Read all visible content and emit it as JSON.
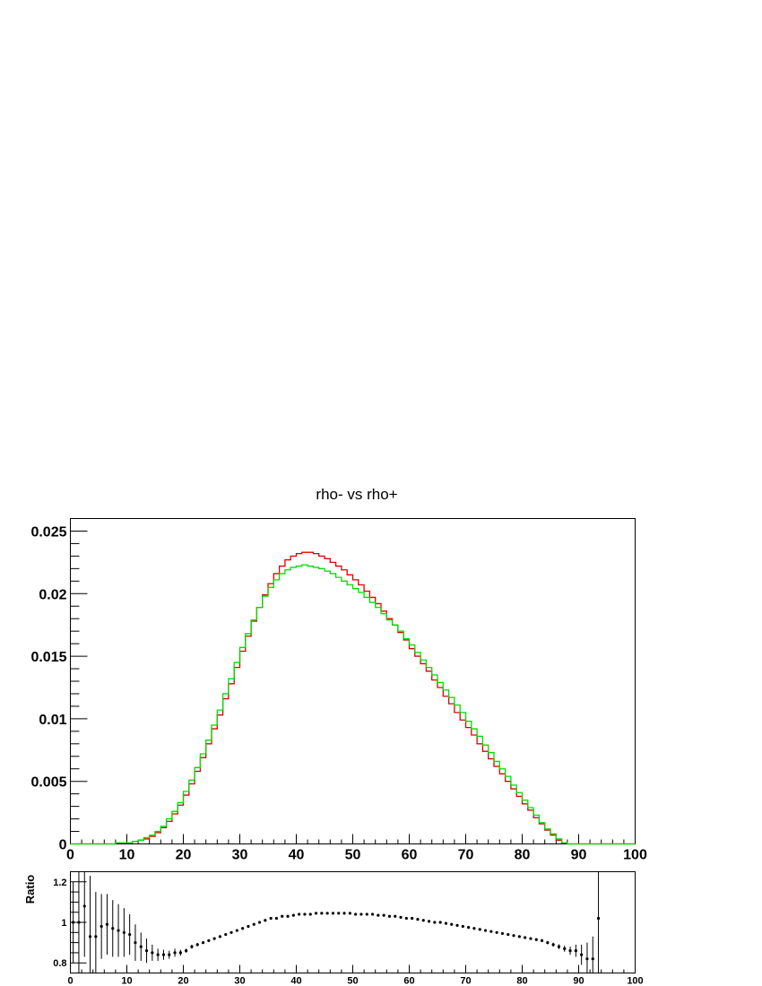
{
  "chart_data": [
    {
      "type": "line",
      "title": "rho- vs rho+",
      "xlim": [
        0,
        100
      ],
      "ylim": [
        0,
        0.026
      ],
      "x_ticks": [
        0,
        10,
        20,
        30,
        40,
        50,
        60,
        70,
        80,
        90,
        100
      ],
      "x_tick_labels": [
        "0",
        "10",
        "20",
        "30",
        "40",
        "50",
        "60",
        "70",
        "80",
        "90",
        "100"
      ],
      "y_ticks": [
        0,
        0.005,
        0.01,
        0.015,
        0.02,
        0.025
      ],
      "y_tick_labels": [
        "0",
        "0.005",
        "0.01",
        "0.015",
        "0.02",
        "0.025"
      ],
      "grid": false,
      "series": [
        {
          "color": "#e00000",
          "values": [
            0,
            0,
            0,
            0,
            0,
            0,
            0,
            0,
            0.0001,
            0.0001,
            0.0001,
            0.0002,
            0.0003,
            0.0004,
            0.0006,
            0.0009,
            0.0013,
            0.0018,
            0.0024,
            0.0031,
            0.0039,
            0.0048,
            0.0058,
            0.0069,
            0.008,
            0.0092,
            0.0103,
            0.0116,
            0.0128,
            0.0141,
            0.0154,
            0.0166,
            0.0178,
            0.0189,
            0.0199,
            0.0208,
            0.0216,
            0.0222,
            0.0227,
            0.023,
            0.0232,
            0.0233,
            0.0233,
            0.0232,
            0.023,
            0.0228,
            0.0225,
            0.0222,
            0.0219,
            0.0215,
            0.0211,
            0.0207,
            0.0202,
            0.0197,
            0.0192,
            0.0186,
            0.018,
            0.0175,
            0.0169,
            0.0163,
            0.0156,
            0.015,
            0.0144,
            0.0138,
            0.0131,
            0.0125,
            0.0118,
            0.0112,
            0.0105,
            0.0099,
            0.0093,
            0.0087,
            0.008,
            0.0074,
            0.0068,
            0.0062,
            0.0056,
            0.005,
            0.0044,
            0.0038,
            0.0032,
            0.0027,
            0.0021,
            0.0016,
            0.0011,
            0.0007,
            0.0003,
            0.0001,
            0,
            0,
            0,
            0,
            0,
            0,
            0,
            0,
            0,
            0,
            0,
            0
          ]
        },
        {
          "color": "#00dd00",
          "values": [
            0,
            0,
            0,
            0,
            0,
            0,
            0,
            0,
            0.0001,
            0.0001,
            0.0001,
            0.0002,
            0.0003,
            0.0005,
            0.0007,
            0.001,
            0.0014,
            0.002,
            0.0026,
            0.0033,
            0.0042,
            0.0051,
            0.0061,
            0.0072,
            0.0083,
            0.0095,
            0.0107,
            0.012,
            0.0132,
            0.0145,
            0.0157,
            0.0168,
            0.0179,
            0.0189,
            0.0198,
            0.0205,
            0.0211,
            0.0216,
            0.0219,
            0.0221,
            0.0222,
            0.0223,
            0.0222,
            0.0221,
            0.022,
            0.0218,
            0.0216,
            0.0213,
            0.021,
            0.0207,
            0.0204,
            0.0201,
            0.0197,
            0.0193,
            0.0189,
            0.0184,
            0.0179,
            0.0175,
            0.017,
            0.0164,
            0.0159,
            0.0153,
            0.0147,
            0.0141,
            0.0135,
            0.0129,
            0.0123,
            0.0117,
            0.0111,
            0.0105,
            0.0098,
            0.0092,
            0.0086,
            0.0079,
            0.0073,
            0.0066,
            0.006,
            0.0054,
            0.0047,
            0.0041,
            0.0035,
            0.0029,
            0.0023,
            0.0017,
            0.0012,
            0.0008,
            0.0004,
            0.0001,
            0,
            0,
            0,
            0,
            0,
            0,
            0,
            0,
            0,
            0,
            0,
            0
          ]
        }
      ]
    },
    {
      "type": "scatter",
      "ylabel": "Ratio",
      "xlim": [
        0,
        100
      ],
      "ylim": [
        0.75,
        1.25
      ],
      "x_ticks": [
        0,
        10,
        20,
        30,
        40,
        50,
        60,
        70,
        80,
        90,
        100
      ],
      "x_tick_labels": [
        "0",
        "10",
        "20",
        "30",
        "40",
        "50",
        "60",
        "70",
        "80",
        "90",
        "100"
      ],
      "y_ticks": [
        0.8,
        1,
        1.2
      ],
      "y_tick_labels": [
        "0.8",
        "1",
        "1.2"
      ],
      "grid": false,
      "series": [
        {
          "color": "#000000",
          "x": [
            0.5,
            1.5,
            2.5,
            3.5,
            4.5,
            5.5,
            6.5,
            7.5,
            8.5,
            9.5,
            10.5,
            11.5,
            12.5,
            13.5,
            14.5,
            15.5,
            16.5,
            17.5,
            18.5,
            19.5,
            20.5,
            21.5,
            22.5,
            23.5,
            24.5,
            25.5,
            26.5,
            27.5,
            28.5,
            29.5,
            30.5,
            31.5,
            32.5,
            33.5,
            34.5,
            35.5,
            36.5,
            37.5,
            38.5,
            39.5,
            40.5,
            41.5,
            42.5,
            43.5,
            44.5,
            45.5,
            46.5,
            47.5,
            48.5,
            49.5,
            50.5,
            51.5,
            52.5,
            53.5,
            54.5,
            55.5,
            56.5,
            57.5,
            58.5,
            59.5,
            60.5,
            61.5,
            62.5,
            63.5,
            64.5,
            65.5,
            66.5,
            67.5,
            68.5,
            69.5,
            70.5,
            71.5,
            72.5,
            73.5,
            74.5,
            75.5,
            76.5,
            77.5,
            78.5,
            79.5,
            80.5,
            81.5,
            82.5,
            83.5,
            84.5,
            85.5,
            86.5,
            87.5,
            88.5,
            89.5,
            90.5,
            91.5,
            92.5,
            93.5
          ],
          "values": [
            1.0,
            1.0,
            1.08,
            0.93,
            0.93,
            0.98,
            0.99,
            0.97,
            0.96,
            0.95,
            0.94,
            0.9,
            0.88,
            0.86,
            0.85,
            0.84,
            0.84,
            0.84,
            0.85,
            0.85,
            0.86,
            0.88,
            0.89,
            0.9,
            0.91,
            0.92,
            0.93,
            0.94,
            0.95,
            0.96,
            0.97,
            0.98,
            0.99,
            1.0,
            1.01,
            1.02,
            1.02,
            1.03,
            1.03,
            1.035,
            1.04,
            1.04,
            1.04,
            1.045,
            1.045,
            1.045,
            1.045,
            1.045,
            1.045,
            1.045,
            1.04,
            1.04,
            1.04,
            1.04,
            1.035,
            1.035,
            1.03,
            1.03,
            1.025,
            1.02,
            1.02,
            1.015,
            1.01,
            1.005,
            1.0,
            1.0,
            0.995,
            0.99,
            0.985,
            0.98,
            0.975,
            0.97,
            0.965,
            0.96,
            0.955,
            0.95,
            0.945,
            0.94,
            0.935,
            0.93,
            0.925,
            0.92,
            0.915,
            0.91,
            0.9,
            0.89,
            0.88,
            0.87,
            0.86,
            0.86,
            0.84,
            0.82,
            0.82,
            1.02
          ],
          "errors": [
            0.2,
            0.25,
            0.25,
            0.3,
            0.22,
            0.16,
            0.15,
            0.14,
            0.13,
            0.12,
            0.1,
            0.09,
            0.07,
            0.06,
            0.04,
            0.03,
            0.025,
            0.02,
            0.02,
            0.015,
            0.01,
            0.01,
            0.008,
            0.006,
            0.005,
            0.005,
            0.004,
            0.004,
            0.004,
            0.004,
            0.004,
            0.004,
            0.004,
            0.004,
            0.004,
            0.004,
            0.004,
            0.004,
            0.004,
            0.004,
            0.004,
            0.004,
            0.004,
            0.004,
            0.004,
            0.004,
            0.004,
            0.004,
            0.004,
            0.004,
            0.004,
            0.004,
            0.004,
            0.004,
            0.004,
            0.004,
            0.004,
            0.004,
            0.004,
            0.004,
            0.004,
            0.004,
            0.004,
            0.004,
            0.004,
            0.004,
            0.004,
            0.004,
            0.004,
            0.004,
            0.004,
            0.004,
            0.004,
            0.004,
            0.004,
            0.004,
            0.004,
            0.004,
            0.004,
            0.004,
            0.005,
            0.005,
            0.006,
            0.007,
            0.008,
            0.01,
            0.012,
            0.015,
            0.02,
            0.03,
            0.05,
            0.08,
            0.11,
            0.3
          ]
        }
      ]
    }
  ]
}
